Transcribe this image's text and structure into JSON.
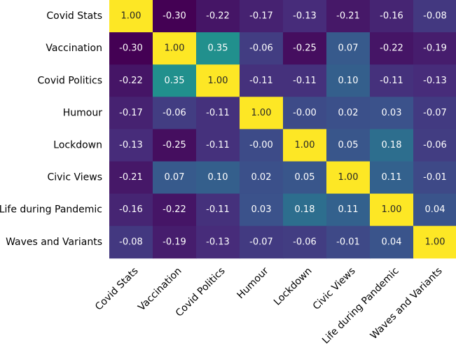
{
  "chart_data": {
    "type": "heatmap",
    "title": "",
    "xlabel": "",
    "ylabel": "",
    "categories": [
      "Covid Stats",
      "Vaccination",
      "Covid Politics",
      "Humour",
      "Lockdown",
      "Civic Views",
      "Life during Pandemic",
      "Waves and Variants"
    ],
    "values": [
      [
        1.0,
        -0.3,
        -0.22,
        -0.17,
        -0.13,
        -0.21,
        -0.16,
        -0.08
      ],
      [
        -0.3,
        1.0,
        0.35,
        -0.06,
        -0.25,
        0.07,
        -0.22,
        -0.19
      ],
      [
        -0.22,
        0.35,
        1.0,
        -0.11,
        -0.11,
        0.1,
        -0.11,
        -0.13
      ],
      [
        -0.17,
        -0.06,
        -0.11,
        1.0,
        -0.0,
        0.02,
        0.03,
        -0.07
      ],
      [
        -0.13,
        -0.25,
        -0.11,
        -0.0,
        1.0,
        0.05,
        0.18,
        -0.06
      ],
      [
        -0.21,
        0.07,
        0.1,
        0.02,
        0.05,
        1.0,
        0.11,
        -0.01
      ],
      [
        -0.16,
        -0.22,
        -0.11,
        0.03,
        0.18,
        0.11,
        1.0,
        0.04
      ],
      [
        -0.08,
        -0.19,
        -0.13,
        -0.07,
        -0.06,
        -0.01,
        0.04,
        1.0
      ]
    ],
    "cell_labels": [
      [
        "1.00",
        "-0.30",
        "-0.22",
        "-0.17",
        "-0.13",
        "-0.21",
        "-0.16",
        "-0.08"
      ],
      [
        "-0.30",
        "1.00",
        "0.35",
        "-0.06",
        "-0.25",
        "0.07",
        "-0.22",
        "-0.19"
      ],
      [
        "-0.22",
        "0.35",
        "1.00",
        "-0.11",
        "-0.11",
        "0.10",
        "-0.11",
        "-0.13"
      ],
      [
        "-0.17",
        "-0.06",
        "-0.11",
        "1.00",
        "-0.00",
        "0.02",
        "0.03",
        "-0.07"
      ],
      [
        "-0.13",
        "-0.25",
        "-0.11",
        "-0.00",
        "1.00",
        "0.05",
        "0.18",
        "-0.06"
      ],
      [
        "-0.21",
        "0.07",
        "0.10",
        "0.02",
        "0.05",
        "1.00",
        "0.11",
        "-0.01"
      ],
      [
        "-0.16",
        "-0.22",
        "-0.11",
        "0.03",
        "0.18",
        "0.11",
        "1.00",
        "0.04"
      ],
      [
        "-0.08",
        "-0.19",
        "-0.13",
        "-0.07",
        "-0.06",
        "-0.01",
        "0.04",
        "1.00"
      ]
    ],
    "colormap": "viridis",
    "value_range": [
      -0.3,
      1.0
    ],
    "grid": false,
    "legend": "none",
    "x_tick_rotation_deg": 45
  }
}
